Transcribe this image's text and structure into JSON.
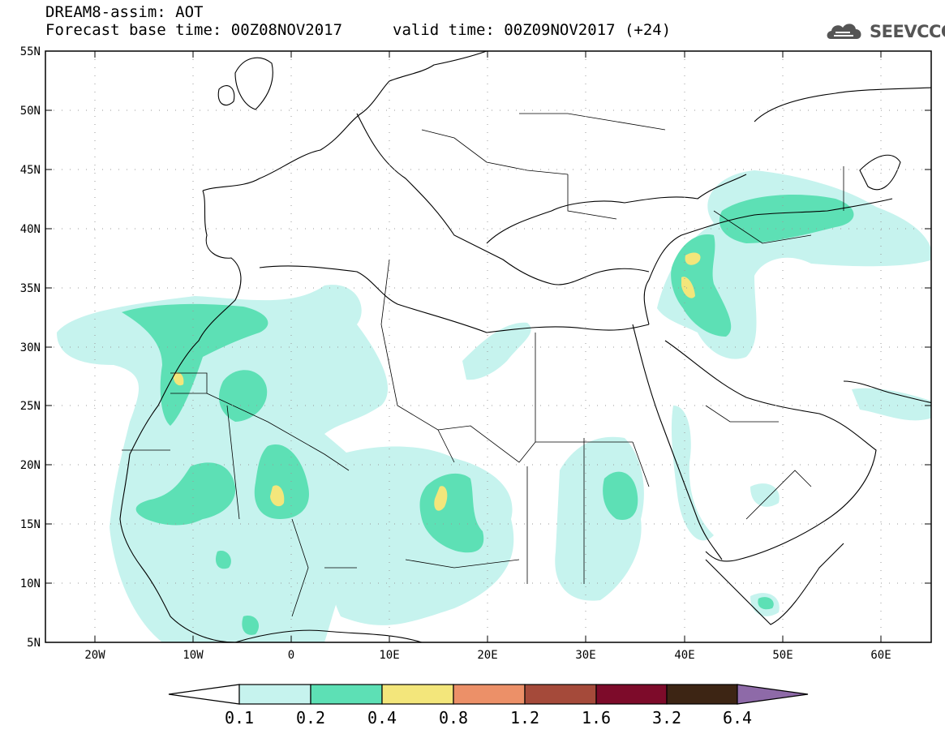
{
  "header": {
    "title_line1": "DREAM8-assim: AOT",
    "title_line2": "Forecast base time: 00Z08NOV2017",
    "valid_time": "valid time: 00Z09NOV2017 (+24)",
    "logo_text": "SEEVCCC"
  },
  "map": {
    "lat_labels": [
      "55N",
      "50N",
      "45N",
      "40N",
      "35N",
      "30N",
      "25N",
      "20N",
      "15N",
      "10N",
      "5N"
    ],
    "lon_labels": [
      "20W",
      "10W",
      "0",
      "10E",
      "20E",
      "30E",
      "40E",
      "50E",
      "60E"
    ],
    "extent": {
      "lon_min": -25,
      "lon_max": 65,
      "lat_min": 5,
      "lat_max": 55
    }
  },
  "legend": {
    "levels": [
      "0.1",
      "0.2",
      "0.4",
      "0.8",
      "1.2",
      "1.6",
      "3.2",
      "6.4"
    ],
    "colors": [
      "#ffffff",
      "#c6f3ee",
      "#5de0b5",
      "#f3e67b",
      "#ec9068",
      "#a54a3a",
      "#7d0b2a",
      "#3d2514",
      "#8e6aa8"
    ]
  },
  "colors": {
    "aot_01": "#c6f3ee",
    "aot_02": "#5de0b5",
    "aot_04": "#f3e67b"
  }
}
